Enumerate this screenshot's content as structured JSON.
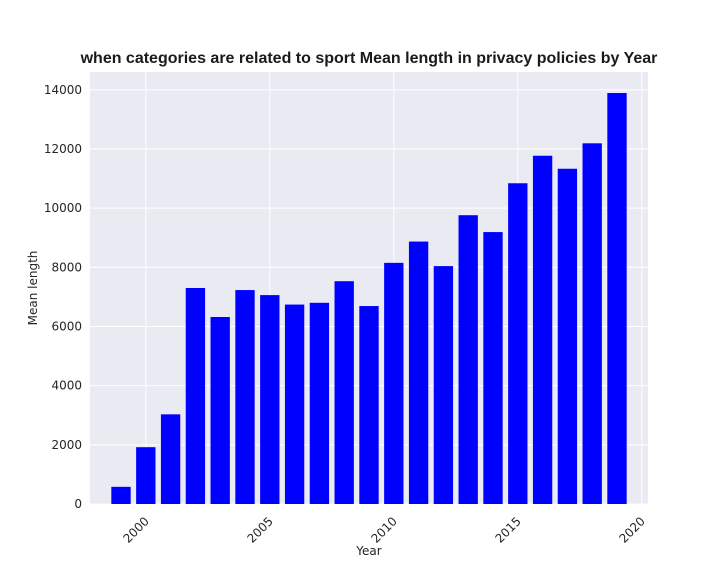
{
  "chart_data": {
    "type": "bar",
    "title": "when categories are related to sport Mean length in privacy policies by Year",
    "xlabel": "Year",
    "ylabel": "Mean length",
    "x": [
      1999,
      2000,
      2001,
      2002,
      2003,
      2004,
      2005,
      2006,
      2007,
      2008,
      2009,
      2010,
      2011,
      2012,
      2013,
      2014,
      2015,
      2016,
      2017,
      2018,
      2019
    ],
    "values": [
      580,
      1920,
      3030,
      7300,
      6320,
      7230,
      7060,
      6740,
      6800,
      7530,
      6690,
      8150,
      8870,
      8040,
      9760,
      9190,
      10840,
      11770,
      11330,
      12190,
      13890
    ],
    "xlim": [
      1997.75,
      2020.25
    ],
    "ylim": [
      0,
      14600
    ],
    "xticks": [
      2000,
      2005,
      2010,
      2015,
      2020
    ],
    "yticks": [
      0,
      2000,
      4000,
      6000,
      8000,
      10000,
      12000,
      14000
    ],
    "bar_color": "#0000ff",
    "background_color": "#eaeaf2",
    "grid": true
  }
}
